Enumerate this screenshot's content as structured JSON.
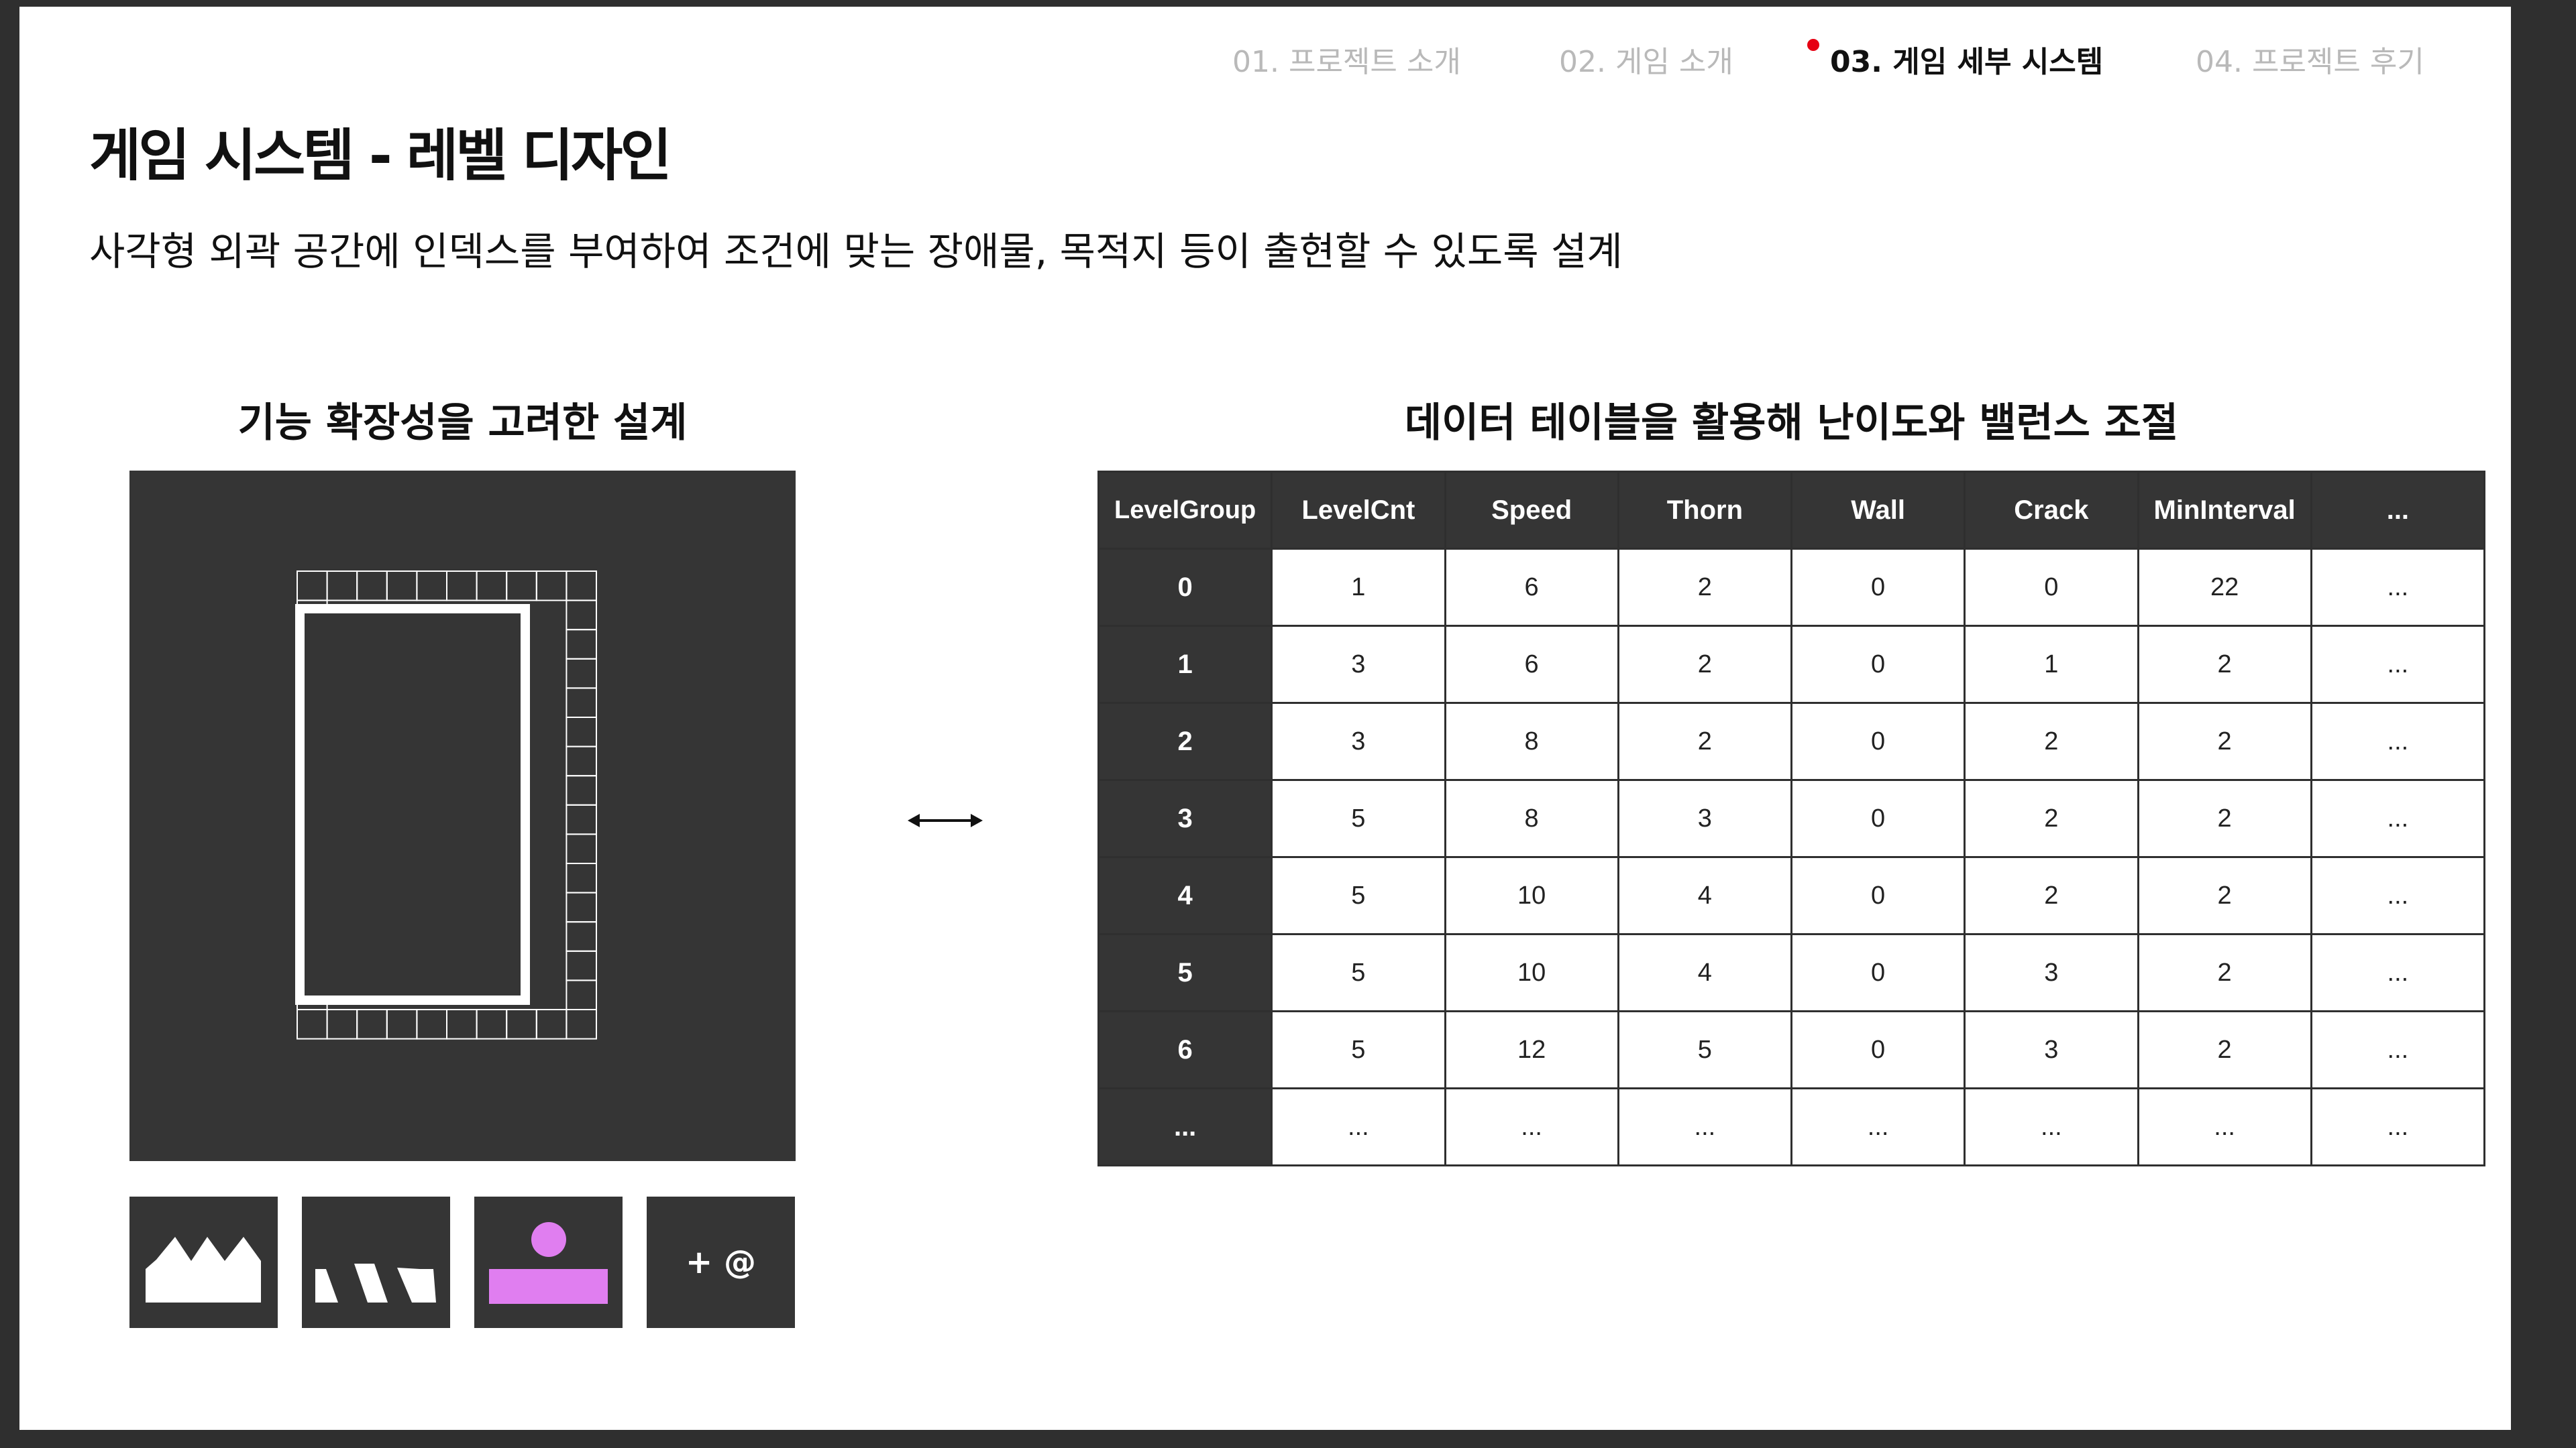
{
  "nav": {
    "items": [
      {
        "label": "01. 프로젝트 소개",
        "active": false
      },
      {
        "label": "02. 게임 소개",
        "active": false
      },
      {
        "label": "03. 게임 세부 시스템",
        "active": true
      },
      {
        "label": "04. 프로젝트 후기",
        "active": false
      }
    ],
    "active_dot_color": "#e60012"
  },
  "page": {
    "title": "게임 시스템 - 레벨 디자인",
    "description": "사각형 외곽 공간에 인덱스를 부여하여 조건에 맞는 장애물, 목적지 등이 출현할 수 있도록 설계"
  },
  "left_section": {
    "title": "기능 확장성을 고려한 설계",
    "tiles": [
      {
        "icon": "thorn-icon"
      },
      {
        "icon": "wall-icon"
      },
      {
        "icon": "destination-icon"
      },
      {
        "icon": "add-icon",
        "label": "+ @"
      }
    ],
    "accent_color": "#e07ef0"
  },
  "right_section": {
    "title": "데이터 테이블을 활용해 난이도와 밸런스 조절",
    "table": {
      "headers": [
        "LevelGroup",
        "LevelCnt",
        "Speed",
        "Thorn",
        "Wall",
        "Crack",
        "MinInterval",
        "..."
      ],
      "rows": [
        [
          "0",
          "1",
          "6",
          "2",
          "0",
          "0",
          "22",
          "..."
        ],
        [
          "1",
          "3",
          "6",
          "2",
          "0",
          "1",
          "2",
          "..."
        ],
        [
          "2",
          "3",
          "8",
          "2",
          "0",
          "2",
          "2",
          "..."
        ],
        [
          "3",
          "5",
          "8",
          "3",
          "0",
          "2",
          "2",
          "..."
        ],
        [
          "4",
          "5",
          "10",
          "4",
          "0",
          "2",
          "2",
          "..."
        ],
        [
          "5",
          "5",
          "10",
          "4",
          "0",
          "3",
          "2",
          "..."
        ],
        [
          "6",
          "5",
          "12",
          "5",
          "0",
          "3",
          "2",
          "..."
        ],
        [
          "...",
          "...",
          "...",
          "...",
          "...",
          "...",
          "...",
          "..."
        ]
      ]
    }
  }
}
